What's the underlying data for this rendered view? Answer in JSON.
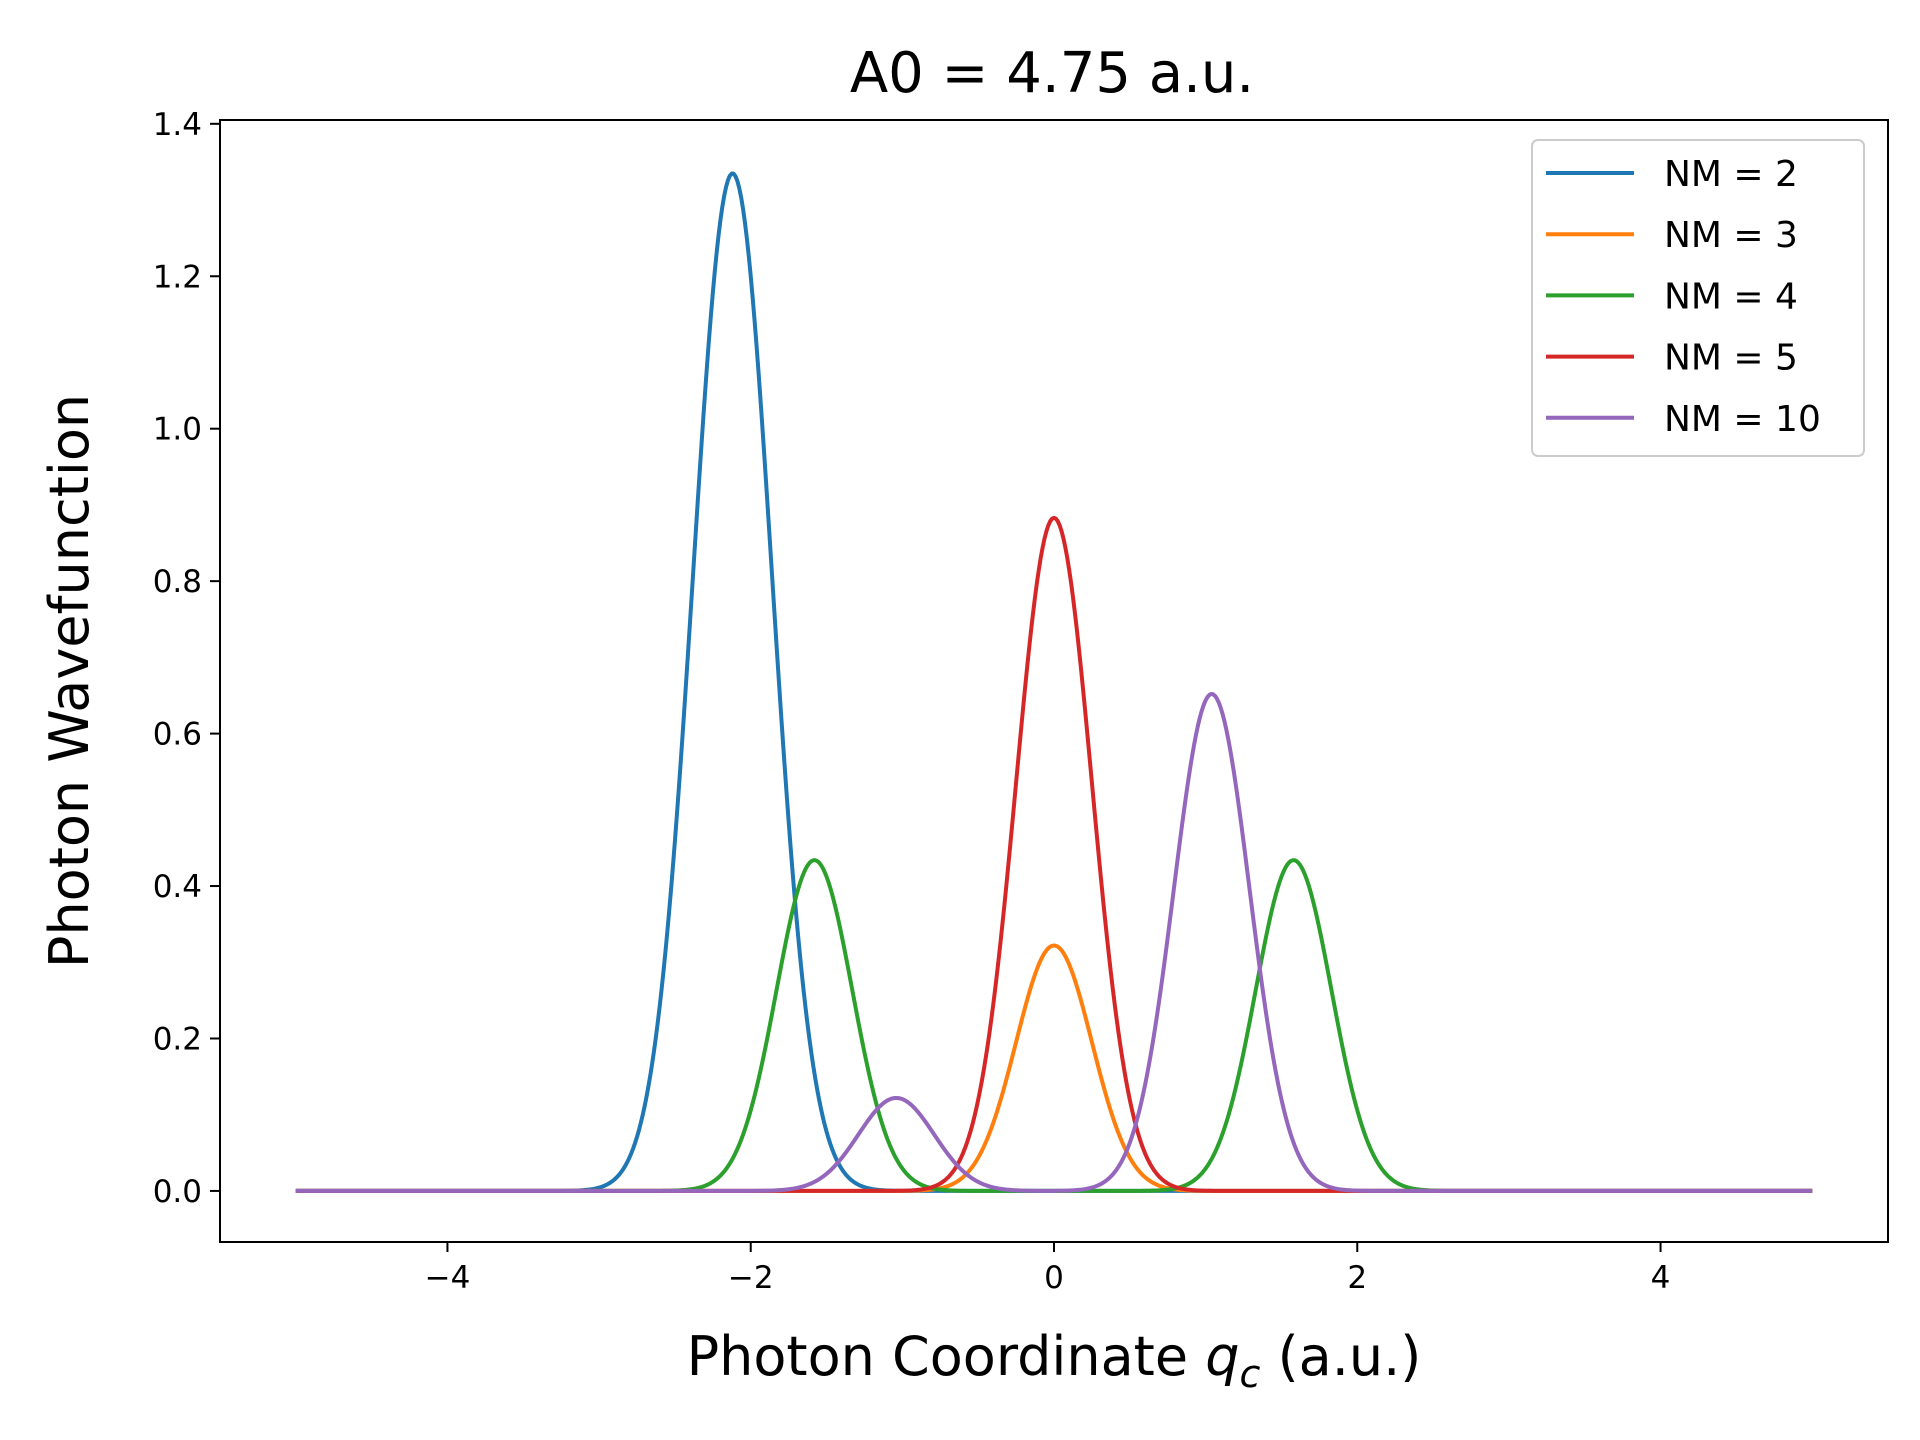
{
  "chart_data": {
    "type": "line",
    "title": "A0 = 4.75 a.u.",
    "xlabel_prefix": "Photon Coordinate ",
    "xlabel_var": "q",
    "xlabel_sub": "c",
    "xlabel_suffix": " (a.u.)",
    "ylabel": "Photon Wavefunction",
    "xlim": [
      -5.5,
      5.5
    ],
    "ylim": [
      -0.067,
      1.405
    ],
    "xticks": [
      -4,
      -2,
      0,
      2,
      4
    ],
    "xtick_labels": [
      "−4",
      "−2",
      "0",
      "2",
      "4"
    ],
    "yticks": [
      0.0,
      0.2,
      0.4,
      0.6,
      0.8,
      1.0,
      1.2,
      1.4
    ],
    "ytick_labels": [
      "0.0",
      "0.2",
      "0.4",
      "0.6",
      "0.8",
      "1.0",
      "1.2",
      "1.4"
    ],
    "grid": false,
    "legend_position": "top-right",
    "x_range": [
      -5,
      5
    ],
    "series": [
      {
        "name": "NM = 2",
        "color": "#1f77b4",
        "peaks": [
          {
            "center": -2.12,
            "height": 1.335,
            "sigma": 0.26
          }
        ]
      },
      {
        "name": "NM = 3",
        "color": "#ff7f0e",
        "peaks": [
          {
            "center": 0.0,
            "height": 0.322,
            "sigma": 0.25
          }
        ]
      },
      {
        "name": "NM = 4",
        "color": "#2ca02c",
        "peaks": [
          {
            "center": -1.58,
            "height": 0.434,
            "sigma": 0.25
          },
          {
            "center": 1.58,
            "height": 0.434,
            "sigma": 0.25
          }
        ]
      },
      {
        "name": "NM = 5",
        "color": "#d62728",
        "peaks": [
          {
            "center": 0.0,
            "height": 0.883,
            "sigma": 0.25
          }
        ]
      },
      {
        "name": "NM = 10",
        "color": "#9467bd",
        "peaks": [
          {
            "center": -1.04,
            "height": 0.122,
            "sigma": 0.25
          },
          {
            "center": 1.04,
            "height": 0.652,
            "sigma": 0.25
          }
        ]
      }
    ]
  }
}
